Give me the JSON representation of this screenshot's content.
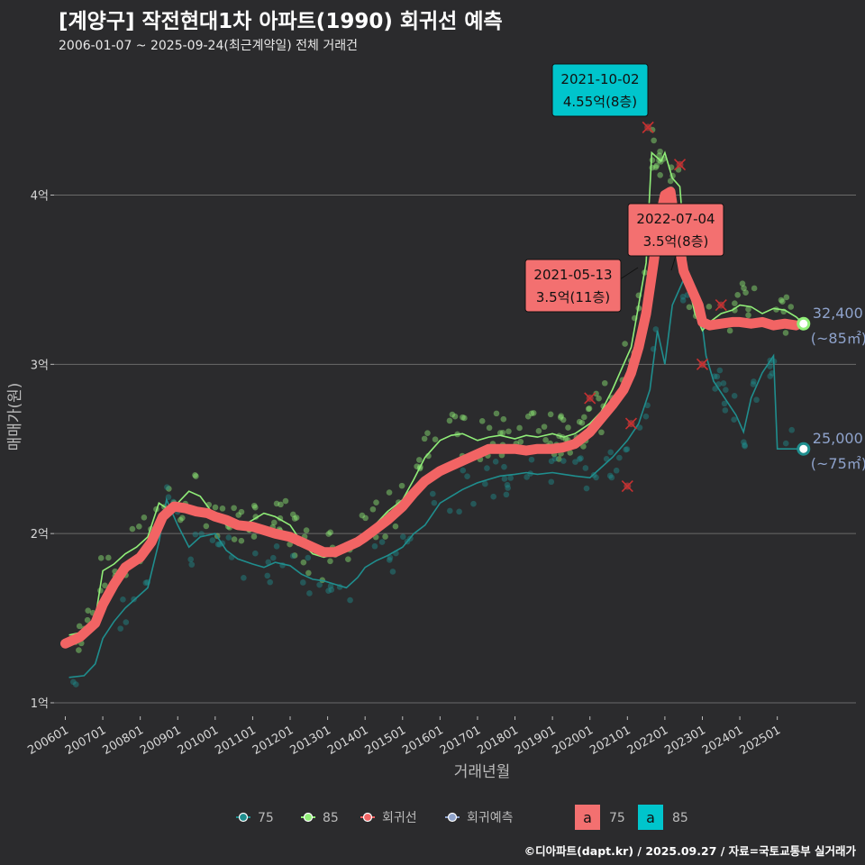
{
  "title": "[계양구] 작전현대1차 아파트(1990) 회귀선 예측",
  "subtitle": "2006-01-07 ~ 2025-09-24(최근계약일) 전체 거래건",
  "footer": "©디아파트(dapt.kr) / 2025.09.27 / 자료=국토교통부 실거래가",
  "colors": {
    "background": "#2b2b2d",
    "grid": "#6a6a6a",
    "area75": "#1f8e8e",
    "area85": "#90ee78",
    "regression": "#f26464",
    "forecast": "#8fa3cc",
    "label_red": "#f37070",
    "label_cyan": "#00c5cc",
    "end_label": "#8fa3cc"
  },
  "chart_data": {
    "type": "line",
    "title": "[계양구] 작전현대1차 아파트(1990) 회귀선 예측",
    "xlabel": "거래년월",
    "ylabel": "매매가(원)",
    "xlim": [
      2005.7,
      2027.1
    ],
    "ylim": [
      9200,
      47800
    ],
    "yticks": [
      {
        "value": 10000,
        "label": "1억"
      },
      {
        "value": 20000,
        "label": "2억"
      },
      {
        "value": 30000,
        "label": "3억"
      },
      {
        "value": 40000,
        "label": "4억"
      }
    ],
    "xticks": [
      {
        "value": 2006.0,
        "label": "200601"
      },
      {
        "value": 2007.0,
        "label": "200701"
      },
      {
        "value": 2008.0,
        "label": "200801"
      },
      {
        "value": 2009.0,
        "label": "200901"
      },
      {
        "value": 2010.0,
        "label": "201001"
      },
      {
        "value": 2011.0,
        "label": "201101"
      },
      {
        "value": 2012.0,
        "label": "201201"
      },
      {
        "value": 2013.0,
        "label": "201301"
      },
      {
        "value": 2014.0,
        "label": "201401"
      },
      {
        "value": 2015.0,
        "label": "201501"
      },
      {
        "value": 2016.0,
        "label": "201601"
      },
      {
        "value": 2017.0,
        "label": "201701"
      },
      {
        "value": 2018.0,
        "label": "201801"
      },
      {
        "value": 2019.0,
        "label": "201901"
      },
      {
        "value": 2020.0,
        "label": "202001"
      },
      {
        "value": 2021.0,
        "label": "202101"
      },
      {
        "value": 2022.0,
        "label": "202201"
      },
      {
        "value": 2023.0,
        "label": "202301"
      },
      {
        "value": 2024.0,
        "label": "202401"
      },
      {
        "value": 2025.0,
        "label": "202501"
      }
    ],
    "series": [
      {
        "name": "75",
        "points": [
          [
            2006.1,
            11500
          ],
          [
            2006.5,
            11600
          ],
          [
            2006.8,
            12300
          ],
          [
            2007.0,
            13800
          ],
          [
            2007.3,
            14800
          ],
          [
            2007.6,
            15600
          ],
          [
            2007.9,
            16200
          ],
          [
            2008.2,
            16800
          ],
          [
            2008.5,
            19500
          ],
          [
            2008.7,
            22000
          ],
          [
            2009.0,
            20500
          ],
          [
            2009.3,
            19200
          ],
          [
            2009.6,
            19800
          ],
          [
            2010.0,
            20000
          ],
          [
            2010.3,
            19000
          ],
          [
            2010.6,
            18500
          ],
          [
            2011.0,
            18200
          ],
          [
            2011.3,
            18000
          ],
          [
            2011.6,
            18300
          ],
          [
            2012.0,
            18100
          ],
          [
            2012.3,
            17600
          ],
          [
            2012.6,
            17300
          ],
          [
            2012.9,
            17200
          ],
          [
            2013.2,
            17000
          ],
          [
            2013.5,
            16800
          ],
          [
            2013.8,
            17400
          ],
          [
            2014.0,
            18000
          ],
          [
            2014.3,
            18400
          ],
          [
            2014.6,
            18700
          ],
          [
            2015.0,
            19200
          ],
          [
            2015.3,
            20000
          ],
          [
            2015.6,
            20500
          ],
          [
            2016.0,
            21800
          ],
          [
            2016.3,
            22200
          ],
          [
            2016.6,
            22600
          ],
          [
            2017.0,
            23000
          ],
          [
            2017.3,
            23200
          ],
          [
            2017.6,
            23400
          ],
          [
            2018.0,
            23500
          ],
          [
            2018.3,
            23600
          ],
          [
            2018.6,
            23500
          ],
          [
            2019.0,
            23600
          ],
          [
            2019.3,
            23500
          ],
          [
            2019.6,
            23400
          ],
          [
            2020.0,
            23300
          ],
          [
            2020.3,
            23900
          ],
          [
            2020.6,
            24500
          ],
          [
            2021.0,
            25500
          ],
          [
            2021.3,
            26500
          ],
          [
            2021.6,
            28500
          ],
          [
            2021.8,
            32000
          ],
          [
            2022.0,
            30000
          ],
          [
            2022.2,
            33500
          ],
          [
            2022.5,
            35000
          ],
          [
            2022.7,
            34500
          ],
          [
            2022.9,
            34000
          ],
          [
            2023.1,
            30500
          ],
          [
            2023.3,
            29000
          ],
          [
            2023.6,
            28000
          ],
          [
            2023.9,
            27000
          ],
          [
            2024.1,
            26000
          ],
          [
            2024.3,
            28000
          ],
          [
            2024.6,
            29500
          ],
          [
            2024.9,
            30500
          ],
          [
            2025.0,
            25000
          ],
          [
            2025.3,
            25000
          ],
          [
            2025.6,
            25000
          ]
        ]
      },
      {
        "name": "85",
        "points": [
          [
            2006.1,
            14000
          ],
          [
            2006.5,
            14200
          ],
          [
            2006.8,
            15000
          ],
          [
            2007.0,
            17800
          ],
          [
            2007.3,
            18200
          ],
          [
            2007.6,
            18800
          ],
          [
            2007.9,
            19200
          ],
          [
            2008.2,
            19800
          ],
          [
            2008.5,
            21800
          ],
          [
            2008.7,
            21500
          ],
          [
            2009.0,
            21800
          ],
          [
            2009.3,
            22500
          ],
          [
            2009.6,
            22200
          ],
          [
            2010.0,
            21000
          ],
          [
            2010.3,
            20500
          ],
          [
            2010.6,
            20300
          ],
          [
            2011.0,
            20800
          ],
          [
            2011.3,
            21200
          ],
          [
            2011.6,
            21000
          ],
          [
            2012.0,
            20500
          ],
          [
            2012.3,
            19500
          ],
          [
            2012.6,
            18800
          ],
          [
            2012.9,
            18600
          ],
          [
            2013.2,
            18800
          ],
          [
            2013.5,
            19200
          ],
          [
            2013.8,
            19600
          ],
          [
            2014.0,
            20000
          ],
          [
            2014.3,
            20600
          ],
          [
            2014.6,
            21300
          ],
          [
            2015.0,
            22000
          ],
          [
            2015.3,
            23200
          ],
          [
            2015.6,
            24500
          ],
          [
            2016.0,
            25500
          ],
          [
            2016.3,
            25800
          ],
          [
            2016.6,
            25900
          ],
          [
            2017.0,
            25500
          ],
          [
            2017.3,
            25700
          ],
          [
            2017.6,
            25800
          ],
          [
            2018.0,
            25600
          ],
          [
            2018.3,
            25800
          ],
          [
            2018.6,
            25700
          ],
          [
            2019.0,
            25900
          ],
          [
            2019.3,
            25700
          ],
          [
            2019.6,
            25900
          ],
          [
            2020.0,
            26500
          ],
          [
            2020.3,
            27200
          ],
          [
            2020.6,
            28500
          ],
          [
            2020.9,
            30000
          ],
          [
            2021.1,
            31000
          ],
          [
            2021.3,
            33500
          ],
          [
            2021.5,
            36000
          ],
          [
            2021.65,
            42500
          ],
          [
            2021.9,
            42000
          ],
          [
            2022.0,
            42500
          ],
          [
            2022.2,
            41000
          ],
          [
            2022.4,
            40500
          ],
          [
            2022.6,
            35000
          ],
          [
            2022.8,
            33000
          ],
          [
            2023.0,
            32000
          ],
          [
            2023.2,
            32500
          ],
          [
            2023.5,
            33000
          ],
          [
            2023.8,
            33200
          ],
          [
            2024.0,
            33500
          ],
          [
            2024.3,
            33400
          ],
          [
            2024.6,
            33000
          ],
          [
            2024.9,
            33300
          ],
          [
            2025.2,
            33200
          ],
          [
            2025.5,
            32800
          ],
          [
            2025.7,
            32400
          ]
        ]
      },
      {
        "name": "회귀선",
        "points": [
          [
            2006.0,
            13500
          ],
          [
            2006.4,
            13900
          ],
          [
            2006.8,
            14700
          ],
          [
            2007.0,
            15800
          ],
          [
            2007.3,
            17000
          ],
          [
            2007.6,
            18000
          ],
          [
            2008.0,
            18600
          ],
          [
            2008.3,
            19500
          ],
          [
            2008.6,
            21000
          ],
          [
            2008.9,
            21600
          ],
          [
            2009.2,
            21500
          ],
          [
            2009.5,
            21300
          ],
          [
            2009.8,
            21200
          ],
          [
            2010.0,
            21000
          ],
          [
            2010.3,
            20800
          ],
          [
            2010.6,
            20500
          ],
          [
            2011.0,
            20400
          ],
          [
            2011.3,
            20200
          ],
          [
            2011.6,
            20000
          ],
          [
            2012.0,
            19800
          ],
          [
            2012.3,
            19500
          ],
          [
            2012.6,
            19200
          ],
          [
            2012.9,
            18900
          ],
          [
            2013.2,
            18900
          ],
          [
            2013.5,
            19200
          ],
          [
            2013.8,
            19500
          ],
          [
            2014.0,
            19800
          ],
          [
            2014.3,
            20300
          ],
          [
            2014.6,
            20800
          ],
          [
            2015.0,
            21600
          ],
          [
            2015.3,
            22400
          ],
          [
            2015.6,
            23100
          ],
          [
            2016.0,
            23700
          ],
          [
            2016.3,
            24000
          ],
          [
            2016.6,
            24300
          ],
          [
            2017.0,
            24700
          ],
          [
            2017.3,
            25000
          ],
          [
            2017.6,
            25000
          ],
          [
            2018.0,
            25000
          ],
          [
            2018.3,
            24900
          ],
          [
            2018.6,
            25000
          ],
          [
            2019.0,
            25000
          ],
          [
            2019.3,
            25100
          ],
          [
            2019.6,
            25300
          ],
          [
            2020.0,
            26000
          ],
          [
            2020.3,
            26800
          ],
          [
            2020.6,
            27600
          ],
          [
            2020.9,
            28500
          ],
          [
            2021.1,
            29500
          ],
          [
            2021.3,
            31000
          ],
          [
            2021.5,
            33000
          ],
          [
            2021.7,
            36000
          ],
          [
            2021.85,
            38500
          ],
          [
            2022.0,
            40000
          ],
          [
            2022.15,
            40200
          ],
          [
            2022.3,
            38000
          ],
          [
            2022.5,
            35500
          ],
          [
            2022.7,
            34500
          ],
          [
            2022.9,
            33500
          ],
          [
            2023.0,
            32500
          ],
          [
            2023.2,
            32300
          ],
          [
            2023.5,
            32400
          ],
          [
            2023.8,
            32500
          ],
          [
            2024.0,
            32500
          ],
          [
            2024.3,
            32400
          ],
          [
            2024.6,
            32500
          ],
          [
            2024.9,
            32300
          ],
          [
            2025.2,
            32400
          ],
          [
            2025.5,
            32300
          ]
        ]
      },
      {
        "name": "회귀예측",
        "points": []
      }
    ],
    "annotations": [
      {
        "date": "2021-10-02",
        "value_text": "4.55억(8층)",
        "x": 2021.75,
        "y": 45500,
        "style": "cyan"
      },
      {
        "date": "2022-07-04",
        "value_text": "3.5억(8층)",
        "x": 2022.5,
        "y": 35000,
        "style": "red"
      },
      {
        "date": "2021-05-13",
        "value_text": "3.5억(11층)",
        "x": 2021.36,
        "y": 35000,
        "style": "red"
      }
    ],
    "end_labels": [
      {
        "value_text": "32,400",
        "area_text": "(~85㎡)",
        "x": 2025.7,
        "y": 32400,
        "series": "85"
      },
      {
        "value_text": "25,000",
        "area_text": "(~75㎡)",
        "x": 2025.7,
        "y": 25000,
        "series": "75"
      }
    ],
    "cancelled_deals": [
      [
        2021.55,
        44000
      ],
      [
        2022.4,
        41800
      ],
      [
        2020.0,
        28000
      ],
      [
        2021.1,
        26500
      ],
      [
        2021.0,
        22800
      ],
      [
        2023.5,
        33500
      ],
      [
        2023.0,
        30000
      ]
    ],
    "legend": {
      "position": "bottom",
      "items": [
        {
          "label": "75",
          "kind": "line",
          "series": "75"
        },
        {
          "label": "85",
          "kind": "line",
          "series": "85"
        },
        {
          "label": "회귀선",
          "kind": "line",
          "series": "회귀선"
        },
        {
          "label": "회귀예측",
          "kind": "line",
          "series": "회귀예측"
        },
        {
          "label": "75",
          "kind": "box",
          "glyph": "a",
          "series": "75"
        },
        {
          "label": "85",
          "kind": "box",
          "glyph": "a",
          "series": "85"
        }
      ]
    }
  }
}
